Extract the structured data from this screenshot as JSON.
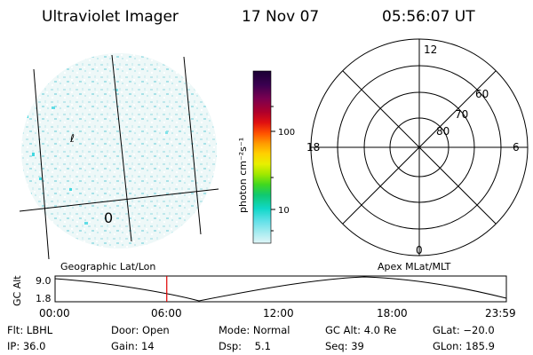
{
  "header": {
    "instrument": "Ultraviolet Imager",
    "date": "17 Nov 07",
    "time": "05:56:07 UT"
  },
  "image_panel": {
    "grid_labels": [
      "0",
      "ℓ"
    ]
  },
  "colorbar": {
    "unit_label": "photon cm⁻²s⁻¹",
    "ticks": [
      "100",
      "10"
    ],
    "colors": [
      "#1a0033",
      "#3a0050",
      "#7a0050",
      "#b0002a",
      "#e01010",
      "#ff5000",
      "#ff9a00",
      "#ffd000",
      "#e8f000",
      "#a0e800",
      "#40d820",
      "#10c870",
      "#10d8c8",
      "#60e0e8",
      "#a8ecf0",
      "#e0f6f8"
    ]
  },
  "polar_plot": {
    "clock_labels": {
      "top": "12",
      "bottom": "0",
      "left": "18",
      "right": "6"
    },
    "lat_labels": [
      "60",
      "70",
      "80"
    ]
  },
  "plot_labels": {
    "left": "Geographic Lat/Lon",
    "right": "Apex MLat/MLT"
  },
  "alt_plot": {
    "ylabel": "GC Alt",
    "ymax": "9.0",
    "ymin": "1.8",
    "x_ticks": [
      "00:00",
      "06:00",
      "12:00",
      "18:00",
      "23:59"
    ],
    "current_time_marker_hours": 5.94,
    "marker_color": "#e00000"
  },
  "status": {
    "flt": "Flt: LBHL",
    "ip": "IP: 36.0",
    "door": "Door: Open",
    "gain": "Gain: 14",
    "mode": "Mode: Normal",
    "dsp": "Dsp:    5.1",
    "gcalt": "GC Alt: 4.0 Re",
    "seq": "Seq: 39",
    "glat": "GLat: −20.0",
    "glon": "GLon: 185.9"
  }
}
